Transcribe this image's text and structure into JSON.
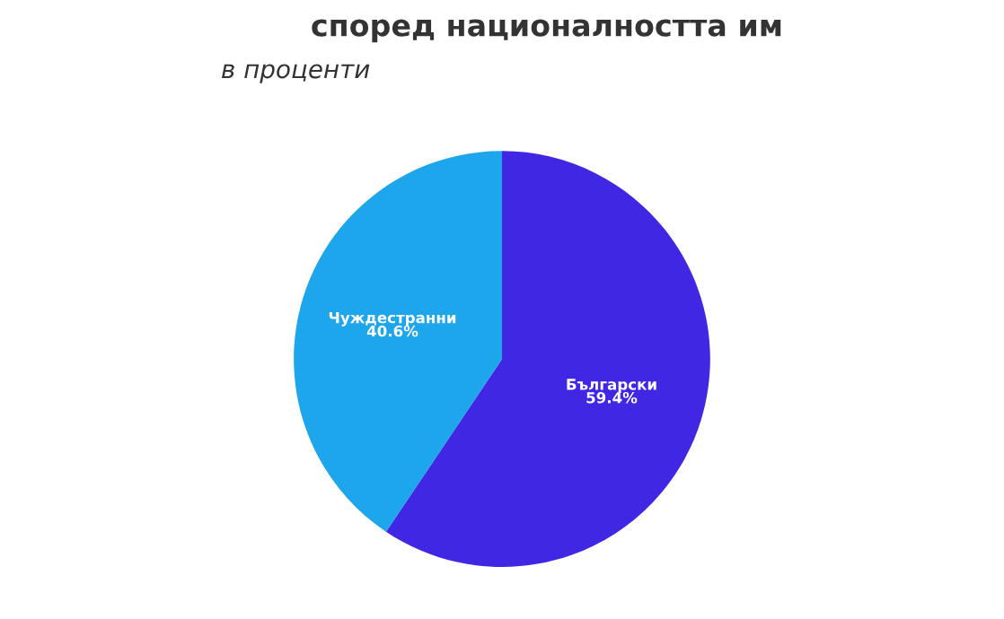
{
  "chart_data": {
    "type": "pie",
    "title": "според националността им",
    "subtitle": "в проценти",
    "categories": [
      "Български",
      "Чуждестранни"
    ],
    "values": [
      59.4,
      40.6
    ],
    "value_labels": [
      "59.4%",
      "40.6%"
    ],
    "colors": [
      "#4027e4",
      "#1ea6ec"
    ],
    "legend": false
  }
}
